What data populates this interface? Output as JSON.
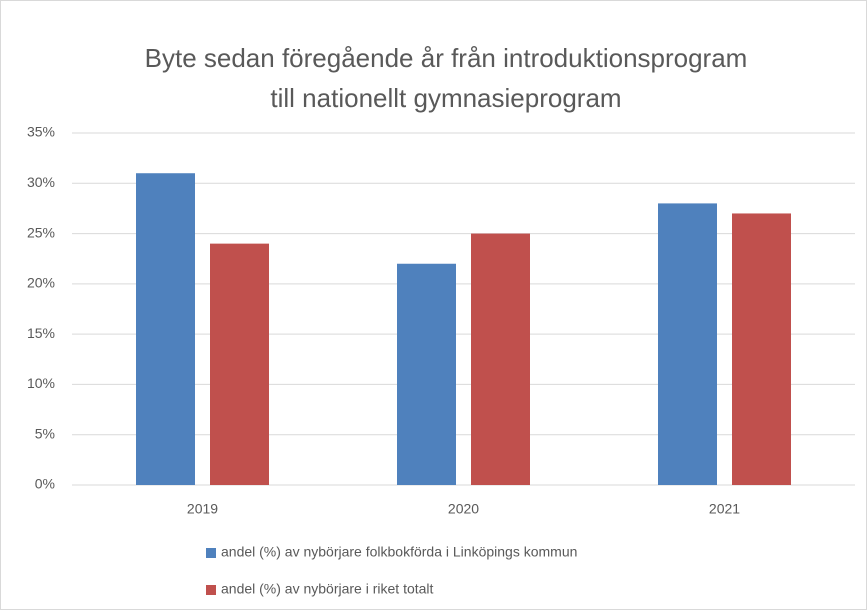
{
  "chart_data": {
    "type": "bar",
    "title": [
      "Byte sedan föregående år från introduktionsprogram",
      "till nationellt gymnasieprogram"
    ],
    "categories": [
      "2019",
      "2020",
      "2021"
    ],
    "series": [
      {
        "name": "andel (%) av nybörjare folkbokförda i Linköpings kommun",
        "color": "#4f81bd",
        "values": [
          31,
          22,
          28
        ]
      },
      {
        "name": "andel (%) av nybörjare i riket totalt",
        "color": "#c0504d",
        "values": [
          24,
          25,
          27
        ]
      }
    ],
    "ylim": [
      0,
      35
    ],
    "yticks": [
      {
        "value": 0,
        "label": "0%"
      },
      {
        "value": 5,
        "label": "5%"
      },
      {
        "value": 10,
        "label": "10%"
      },
      {
        "value": 15,
        "label": "15%"
      },
      {
        "value": 20,
        "label": "20%"
      },
      {
        "value": 25,
        "label": "25%"
      },
      {
        "value": 30,
        "label": "30%"
      },
      {
        "value": 35,
        "label": "35%"
      }
    ],
    "grid": true,
    "legend": "bottom"
  }
}
